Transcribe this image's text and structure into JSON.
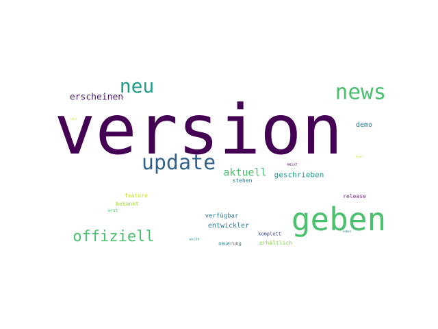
{
  "words": [
    {
      "text": "version",
      "color": "#440154"
    },
    {
      "text": "geben",
      "color": "#4ac16d"
    },
    {
      "text": "news",
      "color": "#4ac16d"
    },
    {
      "text": "update",
      "color": "#33638d"
    },
    {
      "text": "neu",
      "color": "#1f9e89"
    },
    {
      "text": "offiziell",
      "color": "#4ac16d"
    },
    {
      "text": "erscheinen",
      "color": "#481a6c"
    },
    {
      "text": "aktuell",
      "color": "#4ac16d"
    },
    {
      "text": "geschrieben",
      "color": "#1f9e89"
    },
    {
      "text": "entwickler",
      "color": "#2a788e"
    },
    {
      "text": "demo",
      "color": "#2a788e"
    },
    {
      "text": "verfügbar",
      "color": "#2a788e"
    },
    {
      "text": "stehen",
      "color": "#2a788e"
    },
    {
      "text": "feature",
      "color": "#bddf26"
    },
    {
      "text": "bekannt",
      "color": "#a2da37"
    },
    {
      "text": "release",
      "color": "#7a2d8a"
    },
    {
      "text": "erhältlich",
      "color": "#86d549"
    },
    {
      "text": "komplett",
      "color": "#3e4a89"
    },
    {
      "text": "neuerung",
      "color": "#2a788e"
    },
    {
      "text": "erst",
      "color": "#4ac16d"
    },
    {
      "text": "woche",
      "color": "#1f9e89"
    },
    {
      "text": "meist",
      "color": "#440154"
    },
    {
      "text": "live",
      "color": "#bddf26"
    },
    {
      "text": "neben",
      "color": "#2a788e"
    },
    {
      "text": "heut",
      "color": "#d8e219"
    }
  ]
}
